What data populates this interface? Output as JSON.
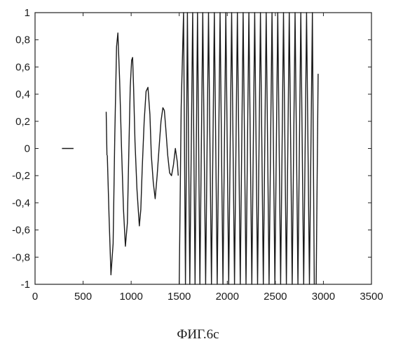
{
  "caption": "ФИГ.6с",
  "chart_data": {
    "type": "line",
    "title": "",
    "xlabel": "",
    "ylabel": "",
    "xlim": [
      0,
      3500
    ],
    "ylim": [
      -1,
      1
    ],
    "grid": false,
    "x_ticks": [
      0,
      500,
      1000,
      1500,
      2000,
      2500,
      3000,
      3500
    ],
    "x_tick_labels": [
      "0",
      "500",
      "1000",
      "1500",
      "2000",
      "2500",
      "3000",
      "3500"
    ],
    "y_ticks": [
      1,
      0.8,
      0.6,
      0.4,
      0.2,
      0,
      -0.2,
      -0.4,
      -0.6,
      -0.8,
      -1
    ],
    "y_tick_labels": [
      "1",
      "0,8",
      "0,6",
      "0,4",
      "0,2",
      "0",
      "-0,2",
      "-0,4",
      "-0,6",
      "-0,8",
      "-1"
    ],
    "series": [
      {
        "segments": [
          {
            "x": [
              280,
              400
            ],
            "y": [
              0,
              0
            ]
          },
          {
            "x": [
              740,
              748
            ],
            "y": [
              0.27,
              -0.05
            ]
          },
          {
            "x": [
              752,
              770,
              790,
              812,
              830,
              848,
              862,
              880,
              900,
              920,
              940,
              960,
              975,
              990,
              1005,
              1015,
              1025,
              1040,
              1060,
              1085,
              1100,
              1115,
              1135,
              1155,
              1175,
              1195,
              1210,
              1230,
              1250,
              1270,
              1290,
              1310,
              1330,
              1345,
              1360,
              1380,
              1400,
              1420,
              1440,
              1460,
              1480,
              1490
            ],
            "y": [
              -0.05,
              -0.5,
              -0.93,
              -0.7,
              0.1,
              0.75,
              0.85,
              0.5,
              0.0,
              -0.45,
              -0.72,
              -0.55,
              -0.05,
              0.45,
              0.65,
              0.67,
              0.45,
              0.05,
              -0.3,
              -0.57,
              -0.45,
              -0.15,
              0.2,
              0.42,
              0.45,
              0.25,
              -0.05,
              -0.25,
              -0.37,
              -0.2,
              0.0,
              0.2,
              0.3,
              0.28,
              0.15,
              -0.05,
              -0.18,
              -0.2,
              -0.12,
              0.0,
              -0.1,
              -0.2
            ]
          },
          {
            "x": [
              1500,
              1520,
              1545,
              1565,
              1585,
              1610,
              1640,
              1665,
              1690,
              1715,
              1745,
              1775,
              1805,
              1835,
              1865,
              1895,
              1925,
              1955,
              1985,
              2015,
              2045,
              2075,
              2105,
              2135,
              2165,
              2195,
              2225,
              2255,
              2285,
              2315,
              2345,
              2375,
              2405,
              2435,
              2465,
              2495,
              2525,
              2555,
              2585,
              2615,
              2645,
              2675,
              2705,
              2735,
              2765,
              2795,
              2825,
              2855,
              2885,
              2905
            ],
            "y": [
              -1,
              0.3,
              1,
              -1,
              1,
              -1,
              1,
              -1,
              1,
              -1,
              1,
              -1,
              1,
              -1,
              1,
              -1,
              1,
              -1,
              1,
              -1,
              1,
              -1,
              1,
              -1,
              1,
              -1,
              1,
              -1,
              1,
              -1,
              1,
              -1,
              1,
              -1,
              1,
              -1,
              1,
              -1,
              1,
              -1,
              1,
              -1,
              1,
              -1,
              1,
              -1,
              1,
              -1,
              1,
              -1
            ]
          },
          {
            "x": [
              2925,
              2945
            ],
            "y": [
              -1,
              0.55
            ]
          }
        ]
      }
    ]
  }
}
